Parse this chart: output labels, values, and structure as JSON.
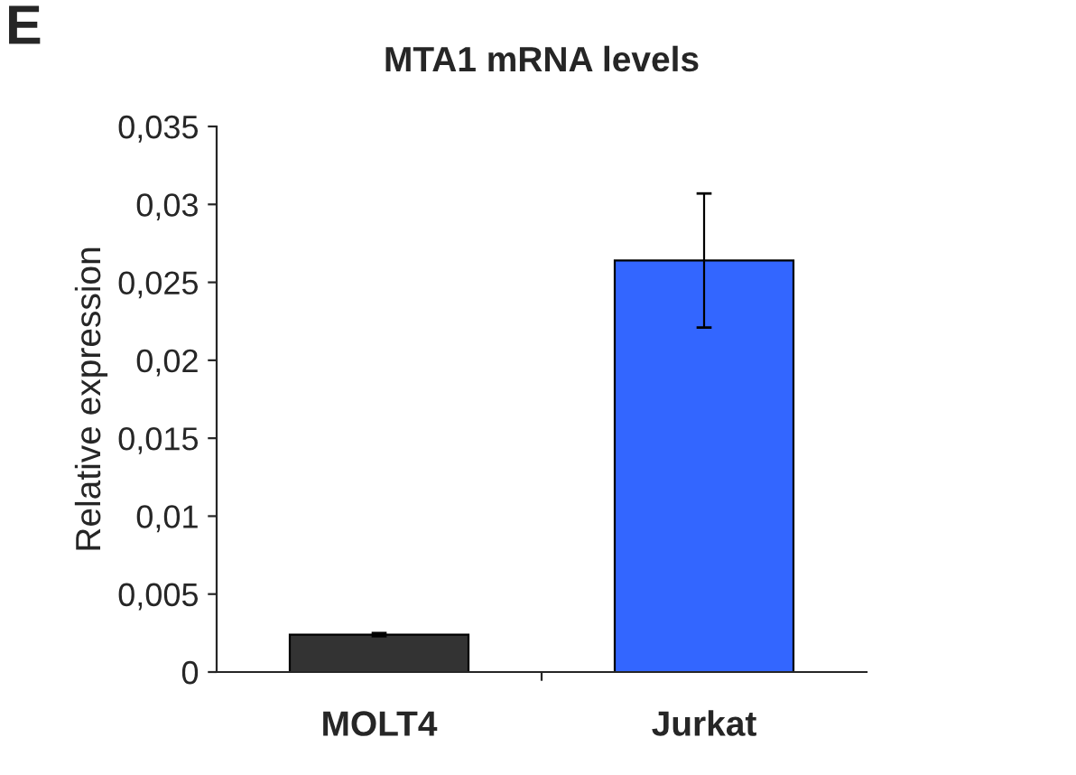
{
  "chart_data": {
    "type": "bar",
    "title": "MTA1 mRNA levels",
    "ylabel": "Relative expression",
    "categories": [
      "MOLT4",
      "Jurkat"
    ],
    "values": [
      0.0024,
      0.0264
    ],
    "colors": [
      "#333333",
      "#3366ff"
    ],
    "errors": [
      0.0001,
      0.0043
    ],
    "ylim": [
      0,
      0.035
    ],
    "yticks": [
      0,
      {
        "value": 0.005,
        "label": "0,005"
      },
      {
        "value": 0.01,
        "label": "0,01"
      },
      {
        "value": 0.015,
        "label": "0,015"
      },
      {
        "value": 0.02,
        "label": "0,02"
      },
      {
        "value": 0.025,
        "label": "0,025"
      },
      {
        "value": 0.03,
        "label": "0,03"
      },
      {
        "value": 0.035,
        "label": "0,035"
      }
    ],
    "annotations": [
      "E"
    ],
    "grid": false,
    "legend": false
  }
}
